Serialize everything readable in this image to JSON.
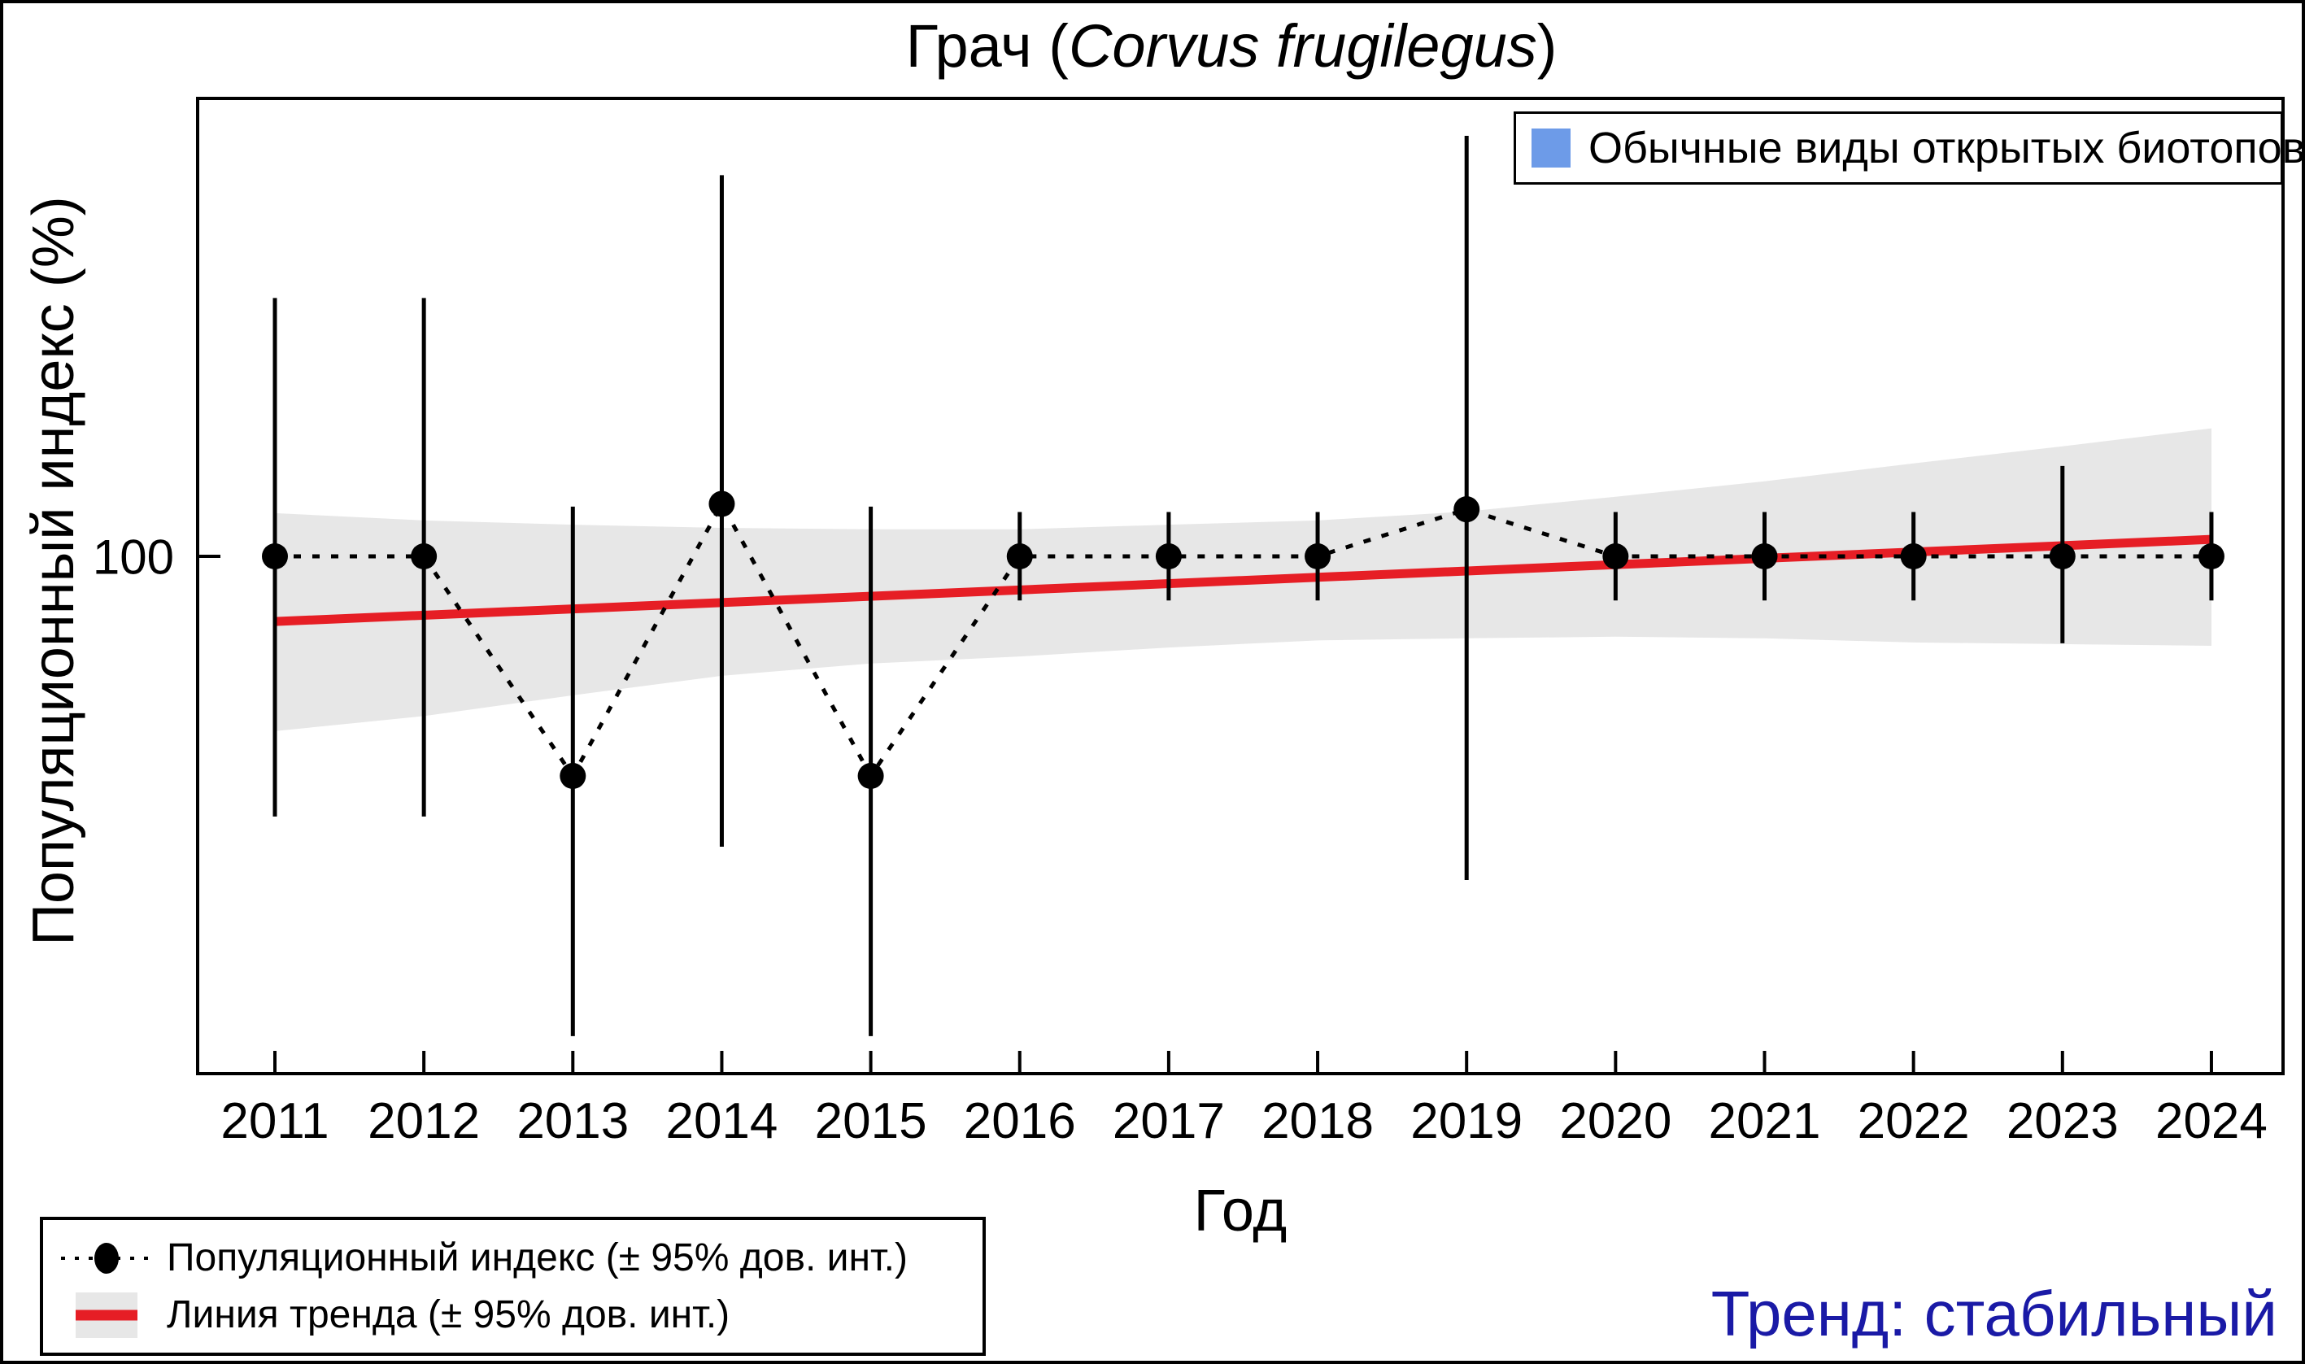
{
  "title": {
    "prefix": "Грач (",
    "latin": "Corvus frugilegus",
    "suffix": ")"
  },
  "axes": {
    "y_label": "Популяционный индекс (%)",
    "x_label": "Год",
    "y_tick_label": "100"
  },
  "legend_biotope": {
    "label": "Обычные виды открытых биотопов",
    "swatch_color": "#6d9be8"
  },
  "legend_series": {
    "items": [
      {
        "glyph": "point-with-ci-icon",
        "label": "Популяционный индекс (± 95% дов. инт.)"
      },
      {
        "glyph": "trend-line-with-ci-icon",
        "label": "Линия тренда (± 95% дов. инт.)"
      }
    ]
  },
  "trend_status": {
    "label": "Тренд: стабильный",
    "color": "#1a1aa6"
  },
  "colors": {
    "points": "#000000",
    "trend_line": "#e61e25",
    "ci_band": "#e7e7e7",
    "legend_swatch": "#6d9be8",
    "trend_text": "#1a1aa6",
    "axis": "#000000"
  },
  "chart_data": {
    "type": "line",
    "title": "Грач (Corvus frugilegus)",
    "xlabel": "Год",
    "ylabel": "Популяционный индекс (%)",
    "x": [
      2011,
      2012,
      2013,
      2014,
      2015,
      2016,
      2017,
      2018,
      2019,
      2020,
      2021,
      2022,
      2023,
      2024
    ],
    "series": [
      {
        "name": "Популяционный индекс (± 95% дов. инт.)",
        "values": [
          100,
          100,
          50,
          118,
          50,
          100,
          100,
          100,
          116,
          100,
          100,
          100,
          100,
          100
        ]
      }
    ],
    "ci_high": [
      226,
      226,
      117,
      333,
      117,
      115,
      115,
      115,
      377,
      115,
      115,
      115,
      133,
      115
    ],
    "ci_low": [
      44,
      44,
      22,
      40,
      22,
      87,
      87,
      87,
      36,
      87,
      87,
      87,
      76,
      87
    ],
    "trend_line": {
      "start_year": 2011,
      "end_year": 2024,
      "start_value": 81.4,
      "end_value": 105.5
    },
    "trend_band_high": [
      114.6,
      112.0,
      110.5,
      109.4,
      108.9,
      108.9,
      110.5,
      112.0,
      115.2,
      120.7,
      126.7,
      134.1,
      141.5,
      149.8
    ],
    "trend_band_low": [
      57.6,
      60.4,
      64.5,
      68.6,
      71.3,
      72.9,
      75.0,
      76.7,
      77.2,
      77.6,
      77.2,
      76.2,
      75.8,
      75.4
    ],
    "y_scale": "log",
    "y_ticks": [
      100
    ],
    "ylim": [
      20,
      420
    ],
    "grid": false,
    "legend_position": "top-right"
  }
}
